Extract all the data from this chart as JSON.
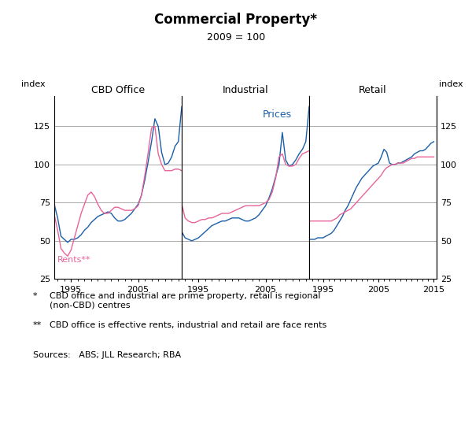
{
  "title": "Commercial Property*",
  "subtitle": "2009 = 100",
  "ylabel_left": "index",
  "ylabel_right": "index",
  "panels": [
    "CBD Office",
    "Industrial",
    "Retail"
  ],
  "ylim": [
    25,
    145
  ],
  "yticks": [
    25,
    50,
    75,
    100,
    125
  ],
  "price_color": "#1a5fa8",
  "rent_color": "#e8649a",
  "price_label": "Prices",
  "rent_label": "Rents**",
  "footnote1_star": "*",
  "footnote1_text": "CBD office and industrial are prime property, retail is regional\n(non-CBD) centres",
  "footnote2_star": "**",
  "footnote2_text": "CBD office is effective rents, industrial and retail are face rents",
  "sources": "Sources:   ABS; JLL Research; RBA",
  "cbd_price_x": [
    1992.5,
    1993.0,
    1993.5,
    1994.0,
    1994.5,
    1995.0,
    1995.5,
    1996.0,
    1996.5,
    1997.0,
    1997.5,
    1998.0,
    1998.5,
    1999.0,
    1999.5,
    2000.0,
    2000.5,
    2001.0,
    2001.5,
    2002.0,
    2002.5,
    2003.0,
    2003.5,
    2004.0,
    2004.5,
    2005.0,
    2005.5,
    2006.0,
    2006.5,
    2007.0,
    2007.5,
    2008.0,
    2008.5,
    2009.0,
    2009.5,
    2010.0,
    2010.5,
    2011.0,
    2011.5
  ],
  "cbd_price_y": [
    74,
    65,
    53,
    51,
    49,
    51,
    51,
    52,
    54,
    57,
    59,
    62,
    64,
    66,
    67,
    68,
    69,
    68,
    65,
    63,
    63,
    64,
    66,
    68,
    71,
    74,
    80,
    90,
    102,
    115,
    130,
    125,
    108,
    100,
    101,
    105,
    112,
    115,
    138
  ],
  "cbd_rent_x": [
    1992.5,
    1993.0,
    1993.5,
    1994.0,
    1994.5,
    1995.0,
    1995.5,
    1996.0,
    1996.5,
    1997.0,
    1997.5,
    1998.0,
    1998.5,
    1999.0,
    1999.5,
    2000.0,
    2000.5,
    2001.0,
    2001.5,
    2002.0,
    2002.5,
    2003.0,
    2003.5,
    2004.0,
    2004.5,
    2005.0,
    2005.5,
    2006.0,
    2006.5,
    2007.0,
    2007.5,
    2008.0,
    2008.5,
    2009.0,
    2009.5,
    2010.0,
    2010.5,
    2011.0,
    2011.5
  ],
  "cbd_rent_y": [
    67,
    57,
    45,
    42,
    40,
    44,
    52,
    60,
    68,
    74,
    80,
    82,
    79,
    74,
    70,
    68,
    68,
    70,
    72,
    72,
    71,
    70,
    70,
    70,
    71,
    73,
    80,
    93,
    108,
    124,
    125,
    107,
    100,
    96,
    96,
    96,
    97,
    97,
    96
  ],
  "ind_price_x": [
    1992.5,
    1993.0,
    1993.5,
    1994.0,
    1994.5,
    1995.0,
    1995.5,
    1996.0,
    1996.5,
    1997.0,
    1997.5,
    1998.0,
    1998.5,
    1999.0,
    1999.5,
    2000.0,
    2000.5,
    2001.0,
    2001.5,
    2002.0,
    2002.5,
    2003.0,
    2003.5,
    2004.0,
    2004.5,
    2005.0,
    2005.5,
    2006.0,
    2006.5,
    2007.0,
    2007.5,
    2008.0,
    2008.5,
    2009.0,
    2009.5,
    2010.0,
    2010.5,
    2011.0,
    2011.5
  ],
  "ind_price_y": [
    56,
    52,
    51,
    50,
    51,
    52,
    54,
    56,
    58,
    60,
    61,
    62,
    63,
    63,
    64,
    65,
    65,
    65,
    64,
    63,
    63,
    64,
    65,
    67,
    70,
    73,
    78,
    84,
    92,
    100,
    121,
    103,
    99,
    100,
    103,
    107,
    110,
    115,
    138
  ],
  "ind_rent_x": [
    1992.5,
    1993.0,
    1993.5,
    1994.0,
    1994.5,
    1995.0,
    1995.5,
    1996.0,
    1996.5,
    1997.0,
    1997.5,
    1998.0,
    1998.5,
    1999.0,
    1999.5,
    2000.0,
    2000.5,
    2001.0,
    2001.5,
    2002.0,
    2002.5,
    2003.0,
    2003.5,
    2004.0,
    2004.5,
    2005.0,
    2005.5,
    2006.0,
    2006.5,
    2007.0,
    2007.5,
    2008.0,
    2008.5,
    2009.0,
    2009.5,
    2010.0,
    2010.5,
    2011.0,
    2011.5
  ],
  "ind_rent_y": [
    74,
    65,
    63,
    62,
    62,
    63,
    64,
    64,
    65,
    65,
    66,
    67,
    68,
    68,
    68,
    69,
    70,
    71,
    72,
    73,
    73,
    73,
    73,
    73,
    74,
    75,
    77,
    82,
    91,
    105,
    107,
    100,
    99,
    99,
    100,
    104,
    107,
    108,
    109
  ],
  "ret_price_x": [
    1992.5,
    1993.0,
    1993.5,
    1994.0,
    1994.5,
    1995.0,
    1995.5,
    1996.0,
    1996.5,
    1997.0,
    1997.5,
    1998.0,
    1998.5,
    1999.0,
    1999.5,
    2000.0,
    2000.5,
    2001.0,
    2001.5,
    2002.0,
    2002.5,
    2003.0,
    2003.5,
    2004.0,
    2004.5,
    2005.0,
    2005.5,
    2006.0,
    2006.5,
    2007.0,
    2007.5,
    2008.0,
    2008.5,
    2009.0,
    2009.5,
    2010.0,
    2010.5,
    2011.0,
    2011.5,
    2012.0,
    2012.5,
    2013.0,
    2013.5,
    2014.0,
    2014.5,
    2015.0
  ],
  "ret_price_y": [
    51,
    51,
    51,
    52,
    52,
    52,
    53,
    54,
    55,
    57,
    60,
    63,
    66,
    70,
    73,
    77,
    81,
    85,
    88,
    91,
    93,
    95,
    97,
    99,
    100,
    101,
    105,
    110,
    108,
    101,
    100,
    100,
    101,
    101,
    102,
    103,
    104,
    105,
    107,
    108,
    109,
    109,
    110,
    112,
    114,
    115
  ],
  "ret_rent_x": [
    1992.5,
    1993.0,
    1993.5,
    1994.0,
    1994.5,
    1995.0,
    1995.5,
    1996.0,
    1996.5,
    1997.0,
    1997.5,
    1998.0,
    1998.5,
    1999.0,
    1999.5,
    2000.0,
    2000.5,
    2001.0,
    2001.5,
    2002.0,
    2002.5,
    2003.0,
    2003.5,
    2004.0,
    2004.5,
    2005.0,
    2005.5,
    2006.0,
    2006.5,
    2007.0,
    2007.5,
    2008.0,
    2008.5,
    2009.0,
    2009.5,
    2010.0,
    2010.5,
    2011.0,
    2011.5,
    2012.0,
    2012.5,
    2013.0,
    2013.5,
    2014.0,
    2014.5,
    2015.0
  ],
  "ret_rent_y": [
    63,
    63,
    63,
    63,
    63,
    63,
    63,
    63,
    63,
    64,
    65,
    67,
    68,
    69,
    70,
    71,
    73,
    75,
    77,
    79,
    81,
    83,
    85,
    87,
    89,
    91,
    93,
    96,
    98,
    99,
    100,
    100,
    101,
    101,
    101,
    102,
    103,
    104,
    104,
    105,
    105,
    105,
    105,
    105,
    105,
    105
  ]
}
